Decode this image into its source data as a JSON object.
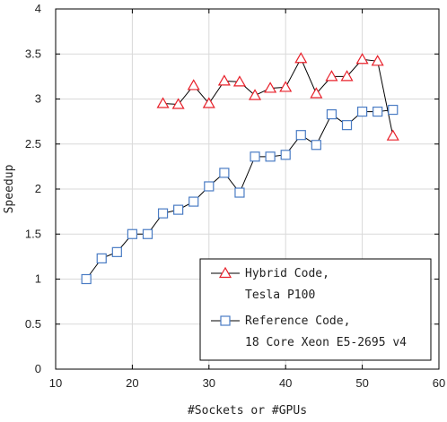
{
  "chart_data": {
    "type": "line",
    "xlabel": "#Sockets or #GPUs",
    "ylabel": "Speedup",
    "xlim": [
      10,
      60
    ],
    "ylim": [
      0,
      4
    ],
    "xticks": [
      10,
      20,
      30,
      40,
      50,
      60
    ],
    "yticks": [
      0,
      0.5,
      1,
      1.5,
      2,
      2.5,
      3,
      3.5,
      4
    ],
    "ytick_labels": [
      "0",
      "0.5",
      "1",
      "1.5",
      "2",
      "2.5",
      "3",
      "3.5",
      "4"
    ],
    "grid": true,
    "legend_position": "bottom-right",
    "series": [
      {
        "name": "Hybrid Code,",
        "name_line2": "Tesla P100",
        "marker": "triangle",
        "color": "#e8202a",
        "x": [
          24,
          26,
          28,
          30,
          32,
          34,
          36,
          38,
          40,
          42,
          44,
          46,
          48,
          50,
          52,
          54
        ],
        "y": [
          2.95,
          2.94,
          3.15,
          2.95,
          3.2,
          3.19,
          3.04,
          3.12,
          3.13,
          3.45,
          3.06,
          3.25,
          3.25,
          3.44,
          3.42,
          2.59
        ]
      },
      {
        "name": "Reference Code,",
        "name_line2": "18 Core Xeon E5-2695 v4",
        "marker": "square",
        "color": "#4a7cc4",
        "x": [
          14,
          16,
          18,
          20,
          22,
          24,
          26,
          28,
          30,
          32,
          34,
          36,
          38,
          40,
          42,
          44,
          46,
          48,
          50,
          52,
          54
        ],
        "y": [
          1.0,
          1.23,
          1.3,
          1.5,
          1.5,
          1.73,
          1.77,
          1.86,
          2.03,
          2.18,
          1.96,
          2.36,
          2.36,
          2.38,
          2.6,
          2.49,
          2.83,
          2.71,
          2.86,
          2.86,
          2.88
        ]
      }
    ]
  }
}
